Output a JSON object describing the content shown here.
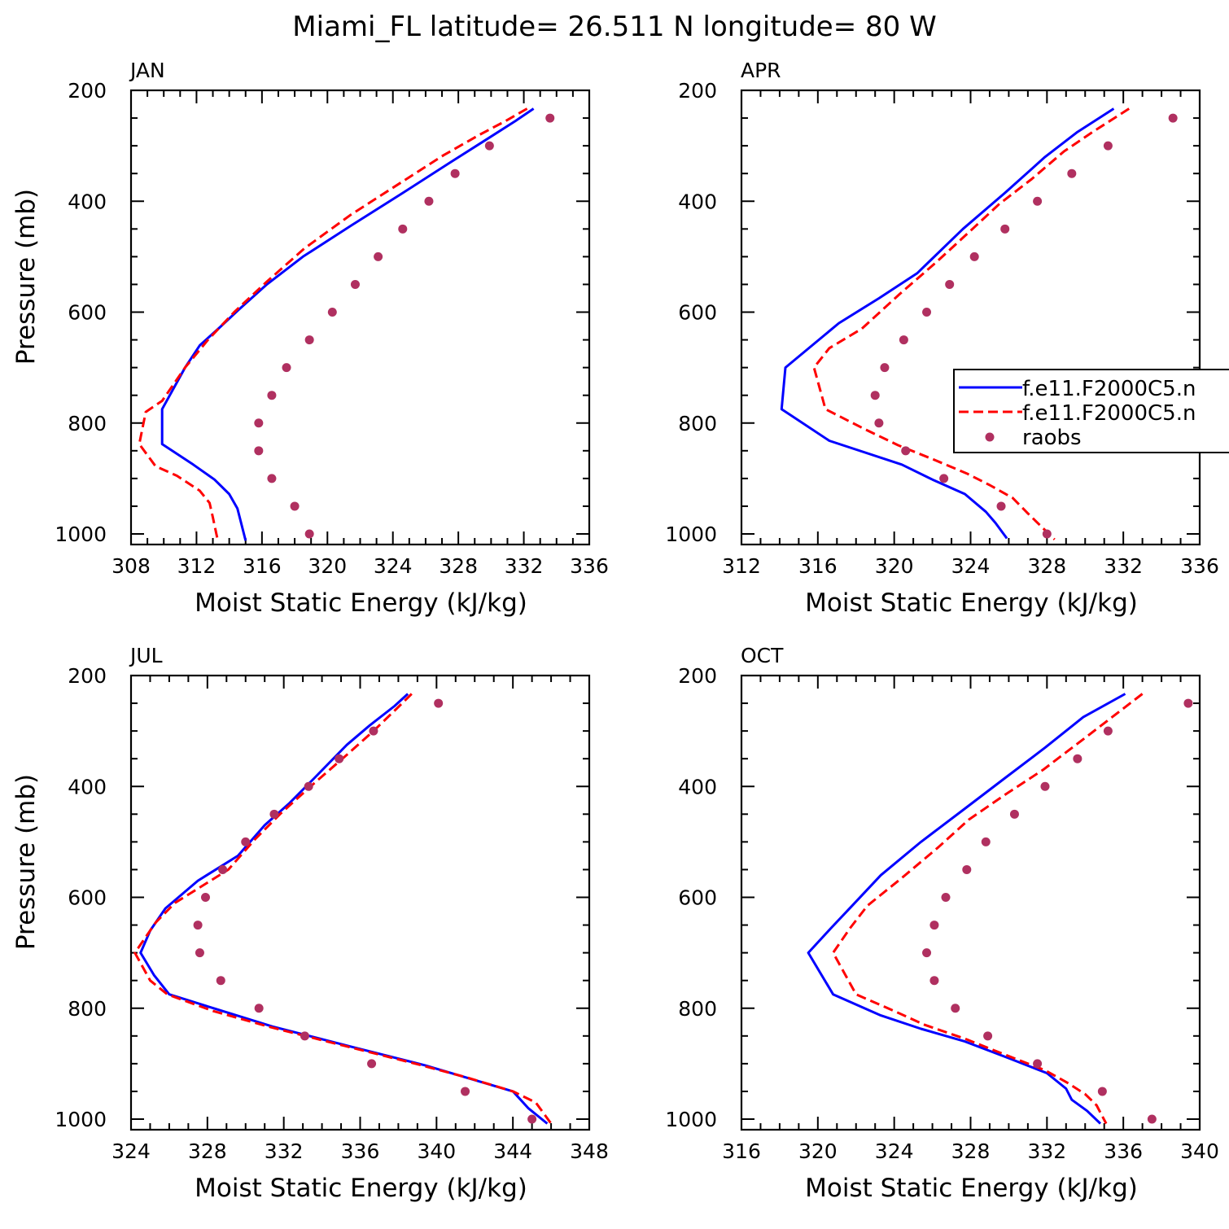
{
  "figure_title": "Miami_FL  latitude= 26.511 N longitude= 80 W",
  "legend": {
    "entries": [
      {
        "label": "f.e11.F2000C5.n",
        "style": "solid",
        "color": "#0000ff"
      },
      {
        "label": "f.e11.F2000C5.n",
        "style": "dashed",
        "color": "#ff0000"
      },
      {
        "label": "raobs",
        "style": "marker",
        "color": "#b03060"
      }
    ]
  },
  "chart_data": [
    {
      "type": "line",
      "title": "JAN",
      "xlabel": "Moist Static Energy (kJ/kg)",
      "ylabel": "Pressure (mb)",
      "xlim": [
        308,
        336
      ],
      "ylim": [
        200,
        1000
      ],
      "y_inverted": true,
      "xticks": [
        "308",
        "312",
        "316",
        "320",
        "324",
        "328",
        "332",
        "336"
      ],
      "yticks": [
        "200",
        "400",
        "600",
        "800",
        "1000"
      ],
      "series": [
        {
          "kind": "solid",
          "color": "#0000ff",
          "points": [
            [
              332.6,
              233
            ],
            [
              331.5,
              255
            ],
            [
              329.8,
              287
            ],
            [
              327.5,
              330
            ],
            [
              324.5,
              387
            ],
            [
              321.5,
              443
            ],
            [
              318.5,
              500
            ],
            [
              316.3,
              550
            ],
            [
              314.6,
              595
            ],
            [
              313.4,
              628
            ],
            [
              312.2,
              660
            ],
            [
              311.3,
              700
            ],
            [
              309.9,
              775
            ],
            [
              309.9,
              838
            ],
            [
              311.8,
              875
            ],
            [
              313.1,
              902
            ],
            [
              314,
              928
            ],
            [
              314.5,
              954
            ],
            [
              315,
              1012
            ]
          ]
        },
        {
          "kind": "dashed",
          "color": "#ff0000",
          "points": [
            [
              332.2,
              233
            ],
            [
              330.9,
              255
            ],
            [
              329.3,
              280
            ],
            [
              327.1,
              317
            ],
            [
              324.3,
              370
            ],
            [
              321.4,
              425
            ],
            [
              318.6,
              485
            ],
            [
              316.3,
              545
            ],
            [
              314.3,
              600
            ],
            [
              312.7,
              650
            ],
            [
              311.3,
              700
            ],
            [
              309.9,
              760
            ],
            [
              308.9,
              780
            ],
            [
              308.5,
              838
            ],
            [
              309.5,
              878
            ],
            [
              310.8,
              895
            ],
            [
              312.2,
              922
            ],
            [
              312.8,
              944
            ],
            [
              313,
              970
            ],
            [
              313.3,
              1012
            ]
          ]
        },
        {
          "kind": "markers",
          "color": "#b03060",
          "points": [
            [
              333.6,
              250
            ],
            [
              329.9,
              300
            ],
            [
              327.8,
              350
            ],
            [
              326.2,
              400
            ],
            [
              324.6,
              450
            ],
            [
              323.1,
              500
            ],
            [
              321.7,
              550
            ],
            [
              320.3,
              600
            ],
            [
              318.9,
              650
            ],
            [
              317.5,
              700
            ],
            [
              316.6,
              750
            ],
            [
              315.8,
              800
            ],
            [
              315.8,
              850
            ],
            [
              316.6,
              900
            ],
            [
              318,
              950
            ],
            [
              318.9,
              1000
            ]
          ]
        }
      ]
    },
    {
      "type": "line",
      "title": "APR",
      "xlabel": "Moist Static Energy (kJ/kg)",
      "ylabel": "",
      "xlim": [
        312,
        336
      ],
      "ylim": [
        200,
        1000
      ],
      "y_inverted": true,
      "xticks": [
        "312",
        "316",
        "320",
        "324",
        "328",
        "332",
        "336"
      ],
      "yticks": [
        "200",
        "400",
        "600",
        "800",
        "1000"
      ],
      "series": [
        {
          "kind": "solid",
          "color": "#0000ff",
          "points": [
            [
              331.5,
              233
            ],
            [
              329.6,
              275
            ],
            [
              327.9,
              320
            ],
            [
              325.8,
              385
            ],
            [
              323.6,
              450
            ],
            [
              321.2,
              530
            ],
            [
              319.2,
              575
            ],
            [
              317.1,
              620
            ],
            [
              315.7,
              660
            ],
            [
              314.3,
              700
            ],
            [
              314.1,
              775
            ],
            [
              316.6,
              832
            ],
            [
              320.4,
              875
            ],
            [
              322,
              902
            ],
            [
              323.7,
              928
            ],
            [
              324.8,
              960
            ],
            [
              325.3,
              980
            ],
            [
              325.9,
              1008
            ]
          ]
        },
        {
          "kind": "dashed",
          "color": "#ff0000",
          "points": [
            [
              332.3,
              233
            ],
            [
              330.4,
              275
            ],
            [
              328.9,
              310
            ],
            [
              327.2,
              360
            ],
            [
              325.5,
              405
            ],
            [
              324.1,
              450
            ],
            [
              322.2,
              510
            ],
            [
              320.3,
              567
            ],
            [
              318.3,
              630
            ],
            [
              316.6,
              665
            ],
            [
              315.8,
              700
            ],
            [
              316.4,
              775
            ],
            [
              318.4,
              810
            ],
            [
              320.2,
              840
            ],
            [
              322,
              865
            ],
            [
              323.8,
              891
            ],
            [
              325,
              912
            ],
            [
              326.2,
              935
            ],
            [
              327,
              963
            ],
            [
              328.4,
              1010
            ]
          ]
        },
        {
          "kind": "markers",
          "color": "#b03060",
          "points": [
            [
              334.6,
              250
            ],
            [
              331.2,
              300
            ],
            [
              329.3,
              350
            ],
            [
              327.5,
              400
            ],
            [
              325.8,
              450
            ],
            [
              324.2,
              500
            ],
            [
              322.9,
              550
            ],
            [
              321.7,
              600
            ],
            [
              320.5,
              650
            ],
            [
              319.5,
              700
            ],
            [
              319,
              750
            ],
            [
              319.2,
              800
            ],
            [
              320.6,
              850
            ],
            [
              322.6,
              900
            ],
            [
              325.6,
              950
            ],
            [
              328,
              1000
            ]
          ]
        }
      ]
    },
    {
      "type": "line",
      "title": "JUL",
      "xlabel": "Moist Static Energy (kJ/kg)",
      "ylabel": "Pressure (mb)",
      "xlim": [
        324,
        348
      ],
      "ylim": [
        200,
        1000
      ],
      "y_inverted": true,
      "xticks": [
        "324",
        "328",
        "332",
        "336",
        "340",
        "344",
        "348"
      ],
      "yticks": [
        "200",
        "400",
        "600",
        "800",
        "1000"
      ],
      "series": [
        {
          "kind": "solid",
          "color": "#0000ff",
          "points": [
            [
              338.5,
              233
            ],
            [
              337.8,
              255
            ],
            [
              336.5,
              290
            ],
            [
              335.3,
              325
            ],
            [
              333.6,
              385
            ],
            [
              332.3,
              430
            ],
            [
              331,
              470
            ],
            [
              329.6,
              525
            ],
            [
              327.5,
              570
            ],
            [
              325.8,
              620
            ],
            [
              325,
              660
            ],
            [
              324.5,
              700
            ],
            [
              325.2,
              740
            ],
            [
              326,
              775
            ],
            [
              328.5,
              802
            ],
            [
              331.4,
              833
            ],
            [
              335.6,
              870
            ],
            [
              339.4,
              903
            ],
            [
              344,
              950
            ],
            [
              344.8,
              980
            ],
            [
              345.8,
              1008
            ]
          ]
        },
        {
          "kind": "dashed",
          "color": "#ff0000",
          "points": [
            [
              338.7,
              233
            ],
            [
              337.9,
              260
            ],
            [
              336.7,
              300
            ],
            [
              335.4,
              340
            ],
            [
              333.4,
              400
            ],
            [
              331.8,
              450
            ],
            [
              330.5,
              495
            ],
            [
              329.1,
              550
            ],
            [
              327.7,
              580
            ],
            [
              326.3,
              610
            ],
            [
              325.3,
              645
            ],
            [
              324.6,
              680
            ],
            [
              324.2,
              700
            ],
            [
              325,
              750
            ],
            [
              325.9,
              775
            ],
            [
              328.3,
              805
            ],
            [
              331.4,
              835
            ],
            [
              335.2,
              868
            ],
            [
              338.9,
              900
            ],
            [
              341.6,
              925
            ],
            [
              344,
              950
            ],
            [
              345.2,
              970
            ],
            [
              346,
              1008
            ]
          ]
        },
        {
          "kind": "markers",
          "color": "#b03060",
          "points": [
            [
              340.1,
              250
            ],
            [
              336.7,
              300
            ],
            [
              334.9,
              350
            ],
            [
              333.3,
              400
            ],
            [
              331.5,
              450
            ],
            [
              330,
              500
            ],
            [
              328.8,
              550
            ],
            [
              327.9,
              600
            ],
            [
              327.5,
              650
            ],
            [
              327.6,
              700
            ],
            [
              328.7,
              750
            ],
            [
              330.7,
              800
            ],
            [
              333.1,
              850
            ],
            [
              336.6,
              900
            ],
            [
              341.5,
              950
            ],
            [
              345,
              1000
            ]
          ]
        }
      ]
    },
    {
      "type": "line",
      "title": "OCT",
      "xlabel": "Moist Static Energy (kJ/kg)",
      "ylabel": "",
      "xlim": [
        316,
        340
      ],
      "ylim": [
        200,
        1000
      ],
      "y_inverted": true,
      "xticks": [
        "316",
        "320",
        "324",
        "328",
        "332",
        "336",
        "340"
      ],
      "yticks": [
        "200",
        "400",
        "600",
        "800",
        "1000"
      ],
      "series": [
        {
          "kind": "solid",
          "color": "#0000ff",
          "points": [
            [
              336.1,
              233
            ],
            [
              333.9,
              275
            ],
            [
              331.9,
              330
            ],
            [
              329.8,
              385
            ],
            [
              327.7,
              440
            ],
            [
              325.4,
              500
            ],
            [
              323.3,
              560
            ],
            [
              321.8,
              615
            ],
            [
              320.7,
              655
            ],
            [
              319.5,
              700
            ],
            [
              320.8,
              775
            ],
            [
              323.3,
              813
            ],
            [
              325.4,
              837
            ],
            [
              327.7,
              860
            ],
            [
              330,
              890
            ],
            [
              332,
              917
            ],
            [
              333,
              945
            ],
            [
              333.3,
              965
            ],
            [
              334.1,
              985
            ],
            [
              334.8,
              1008
            ]
          ]
        },
        {
          "kind": "dashed",
          "color": "#ff0000",
          "points": [
            [
              337,
              233
            ],
            [
              335.6,
              270
            ],
            [
              333.9,
              315
            ],
            [
              331.8,
              370
            ],
            [
              329.8,
              415
            ],
            [
              327.9,
              460
            ],
            [
              326.3,
              510
            ],
            [
              324.4,
              565
            ],
            [
              322.6,
              615
            ],
            [
              321.7,
              655
            ],
            [
              320.8,
              700
            ],
            [
              322,
              775
            ],
            [
              324,
              805
            ],
            [
              325.6,
              830
            ],
            [
              327.7,
              855
            ],
            [
              329.9,
              885
            ],
            [
              331.9,
              912
            ],
            [
              333.1,
              935
            ],
            [
              334,
              955
            ],
            [
              334.6,
              975
            ],
            [
              335.1,
              1008
            ]
          ]
        },
        {
          "kind": "markers",
          "color": "#b03060",
          "points": [
            [
              339.4,
              250
            ],
            [
              335.2,
              300
            ],
            [
              333.6,
              350
            ],
            [
              331.9,
              400
            ],
            [
              330.3,
              450
            ],
            [
              328.8,
              500
            ],
            [
              327.8,
              550
            ],
            [
              326.7,
              600
            ],
            [
              326.1,
              650
            ],
            [
              325.7,
              700
            ],
            [
              326.1,
              750
            ],
            [
              327.2,
              800
            ],
            [
              328.9,
              850
            ],
            [
              331.5,
              900
            ],
            [
              334.9,
              950
            ],
            [
              337.5,
              1000
            ]
          ]
        }
      ]
    }
  ]
}
